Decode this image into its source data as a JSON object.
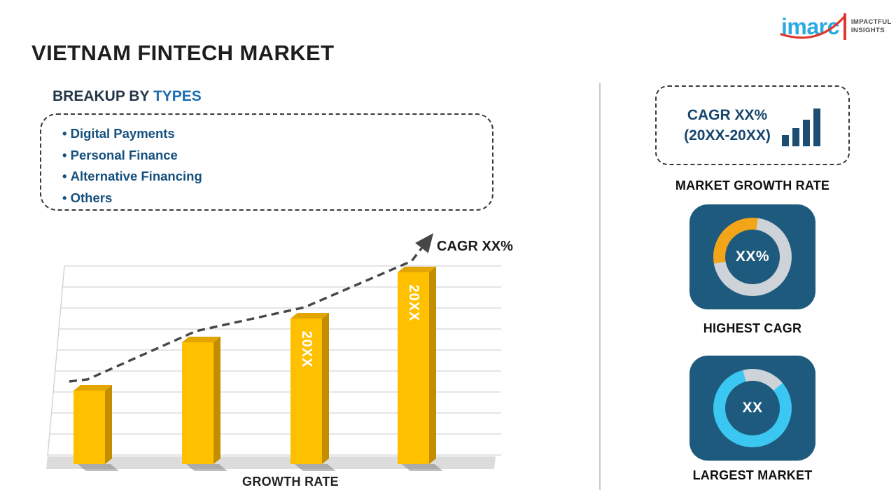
{
  "header": {
    "title": "VIETNAM FINTECH MARKET",
    "logo": {
      "brand": "imarc",
      "tagline_line1": "IMPACTFUL",
      "tagline_line2": "INSIGHTS",
      "brand_color": "#2BAAE2",
      "accent_color": "#E0362C"
    }
  },
  "breakup": {
    "label": "BREAKUP BY",
    "highlight": "TYPES",
    "items": [
      "Digital Payments",
      "Personal Finance",
      "Alternative Financing",
      "Others"
    ]
  },
  "chart_data": {
    "type": "bar",
    "title": "",
    "xlabel": "GROWTH RATE",
    "ylabel": "",
    "bar_labels": [
      "",
      "",
      "20XX",
      "20XX"
    ],
    "values": [
      37,
      61,
      73,
      96
    ],
    "values_unit": "relative height percent (no numeric axis shown)",
    "ylim": [
      0,
      100
    ],
    "grid": "horizontal",
    "annotation": "CAGR XX%",
    "trend": "rising dashed arrow",
    "bar_color": "#FFC000",
    "bar_side_color": "#C28E00",
    "bar_top_color": "#E3A600"
  },
  "sidebar": {
    "growth_box": {
      "line1": "CAGR XX%",
      "line2": "(20XX-20XX)"
    },
    "market_growth_label": "MARKET GROWTH RATE",
    "highest_cagr": {
      "value": "XX%",
      "label": "HIGHEST CAGR",
      "accent": "#F2A519",
      "ring_rest": "#CDD3D8",
      "fraction": 0.3
    },
    "largest_market": {
      "value": "XX",
      "label": "LARGEST MARKET",
      "accent": "#3BC7F2",
      "ring_rest": "#CDD3D8",
      "fraction": 0.82
    },
    "card_bg": "#1E5A7D"
  }
}
